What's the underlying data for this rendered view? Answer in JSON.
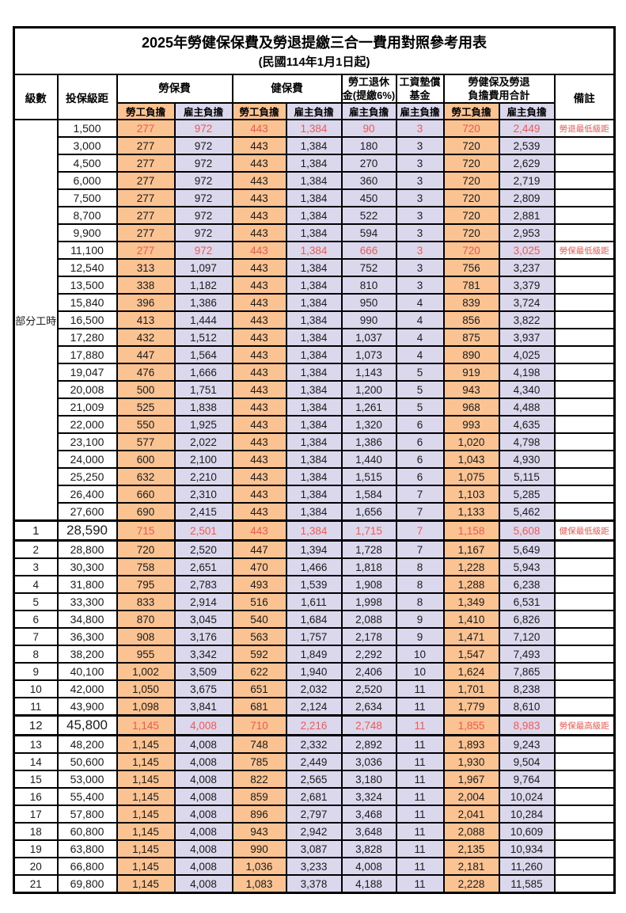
{
  "title": "2025年勞健保保費及勞退提繳三合一費用對照參考用表",
  "subtitle": "(民國114年1月1日起)",
  "header": {
    "level": "級數",
    "bracket": "投保級距",
    "labor_fee": "勞保費",
    "health_fee": "健保費",
    "pension_line1": "勞工退休",
    "pension_line2": "金(提繳6%)",
    "wage_fund_line1": "工資墊償",
    "wage_fund_line2": "基金",
    "total_line1": "勞健保及勞退",
    "total_line2": "負擔費用合計",
    "remark": "備註",
    "employee_burden": "勞工負擔",
    "employer_burden": "雇主負擔"
  },
  "part_time": {
    "label": "部分工時",
    "span": 23
  },
  "colors": {
    "employee_col_bg": "#fac391",
    "employer_col_bg": "#dbd8ee",
    "red_text": "#ee5a52",
    "border": "#000000"
  },
  "rows": [
    {
      "pt": true,
      "level": "",
      "bracket": "1,500",
      "values": [
        "277",
        "972",
        "443",
        "1,384",
        "90",
        "3",
        "720",
        "2,449"
      ],
      "remark": "勞退最低級距",
      "red": true,
      "big": false
    },
    {
      "pt": true,
      "level": "",
      "bracket": "3,000",
      "values": [
        "277",
        "972",
        "443",
        "1,384",
        "180",
        "3",
        "720",
        "2,539"
      ],
      "remark": "",
      "red": false,
      "big": false
    },
    {
      "pt": true,
      "level": "",
      "bracket": "4,500",
      "values": [
        "277",
        "972",
        "443",
        "1,384",
        "270",
        "3",
        "720",
        "2,629"
      ],
      "remark": "",
      "red": false,
      "big": false
    },
    {
      "pt": true,
      "level": "",
      "bracket": "6,000",
      "values": [
        "277",
        "972",
        "443",
        "1,384",
        "360",
        "3",
        "720",
        "2,719"
      ],
      "remark": "",
      "red": false,
      "big": false
    },
    {
      "pt": true,
      "level": "",
      "bracket": "7,500",
      "values": [
        "277",
        "972",
        "443",
        "1,384",
        "450",
        "3",
        "720",
        "2,809"
      ],
      "remark": "",
      "red": false,
      "big": false
    },
    {
      "pt": true,
      "level": "",
      "bracket": "8,700",
      "values": [
        "277",
        "972",
        "443",
        "1,384",
        "522",
        "3",
        "720",
        "2,881"
      ],
      "remark": "",
      "red": false,
      "big": false
    },
    {
      "pt": true,
      "level": "",
      "bracket": "9,900",
      "values": [
        "277",
        "972",
        "443",
        "1,384",
        "594",
        "3",
        "720",
        "2,953"
      ],
      "remark": "",
      "red": false,
      "big": false
    },
    {
      "pt": true,
      "level": "",
      "bracket": "11,100",
      "values": [
        "277",
        "972",
        "443",
        "1,384",
        "666",
        "3",
        "720",
        "3,025"
      ],
      "remark": "勞保最低級距",
      "red": true,
      "big": false
    },
    {
      "pt": true,
      "level": "",
      "bracket": "12,540",
      "values": [
        "313",
        "1,097",
        "443",
        "1,384",
        "752",
        "3",
        "756",
        "3,237"
      ],
      "remark": "",
      "red": false,
      "big": false
    },
    {
      "pt": true,
      "level": "",
      "bracket": "13,500",
      "values": [
        "338",
        "1,182",
        "443",
        "1,384",
        "810",
        "3",
        "781",
        "3,379"
      ],
      "remark": "",
      "red": false,
      "big": false
    },
    {
      "pt": true,
      "level": "",
      "bracket": "15,840",
      "values": [
        "396",
        "1,386",
        "443",
        "1,384",
        "950",
        "4",
        "839",
        "3,724"
      ],
      "remark": "",
      "red": false,
      "big": false
    },
    {
      "pt": true,
      "level": "",
      "bracket": "16,500",
      "values": [
        "413",
        "1,444",
        "443",
        "1,384",
        "990",
        "4",
        "856",
        "3,822"
      ],
      "remark": "",
      "red": false,
      "big": false
    },
    {
      "pt": true,
      "level": "",
      "bracket": "17,280",
      "values": [
        "432",
        "1,512",
        "443",
        "1,384",
        "1,037",
        "4",
        "875",
        "3,937"
      ],
      "remark": "",
      "red": false,
      "big": false
    },
    {
      "pt": true,
      "level": "",
      "bracket": "17,880",
      "values": [
        "447",
        "1,564",
        "443",
        "1,384",
        "1,073",
        "4",
        "890",
        "4,025"
      ],
      "remark": "",
      "red": false,
      "big": false
    },
    {
      "pt": true,
      "level": "",
      "bracket": "19,047",
      "values": [
        "476",
        "1,666",
        "443",
        "1,384",
        "1,143",
        "5",
        "919",
        "4,198"
      ],
      "remark": "",
      "red": false,
      "big": false
    },
    {
      "pt": true,
      "level": "",
      "bracket": "20,008",
      "values": [
        "500",
        "1,751",
        "443",
        "1,384",
        "1,200",
        "5",
        "943",
        "4,340"
      ],
      "remark": "",
      "red": false,
      "big": false
    },
    {
      "pt": true,
      "level": "",
      "bracket": "21,009",
      "values": [
        "525",
        "1,838",
        "443",
        "1,384",
        "1,261",
        "5",
        "968",
        "4,488"
      ],
      "remark": "",
      "red": false,
      "big": false
    },
    {
      "pt": true,
      "level": "",
      "bracket": "22,000",
      "values": [
        "550",
        "1,925",
        "443",
        "1,384",
        "1,320",
        "6",
        "993",
        "4,635"
      ],
      "remark": "",
      "red": false,
      "big": false
    },
    {
      "pt": true,
      "level": "",
      "bracket": "23,100",
      "values": [
        "577",
        "2,022",
        "443",
        "1,384",
        "1,386",
        "6",
        "1,020",
        "4,798"
      ],
      "remark": "",
      "red": false,
      "big": false
    },
    {
      "pt": true,
      "level": "",
      "bracket": "24,000",
      "values": [
        "600",
        "2,100",
        "443",
        "1,384",
        "1,440",
        "6",
        "1,043",
        "4,930"
      ],
      "remark": "",
      "red": false,
      "big": false
    },
    {
      "pt": true,
      "level": "",
      "bracket": "25,250",
      "values": [
        "632",
        "2,210",
        "443",
        "1,384",
        "1,515",
        "6",
        "1,075",
        "5,115"
      ],
      "remark": "",
      "red": false,
      "big": false
    },
    {
      "pt": true,
      "level": "",
      "bracket": "26,400",
      "values": [
        "660",
        "2,310",
        "443",
        "1,384",
        "1,584",
        "7",
        "1,103",
        "5,285"
      ],
      "remark": "",
      "red": false,
      "big": false
    },
    {
      "pt": true,
      "level": "",
      "bracket": "27,600",
      "values": [
        "690",
        "2,415",
        "443",
        "1,384",
        "1,656",
        "7",
        "1,133",
        "5,462"
      ],
      "remark": "",
      "red": false,
      "big": false
    },
    {
      "pt": false,
      "level": "1",
      "bracket": "28,590",
      "values": [
        "715",
        "2,501",
        "443",
        "1,384",
        "1,715",
        "7",
        "1,158",
        "5,608"
      ],
      "remark": "健保最低級距",
      "red": true,
      "big": true
    },
    {
      "pt": false,
      "level": "2",
      "bracket": "28,800",
      "values": [
        "720",
        "2,520",
        "447",
        "1,394",
        "1,728",
        "7",
        "1,167",
        "5,649"
      ],
      "remark": "",
      "red": false,
      "big": false
    },
    {
      "pt": false,
      "level": "3",
      "bracket": "30,300",
      "values": [
        "758",
        "2,651",
        "470",
        "1,466",
        "1,818",
        "8",
        "1,228",
        "5,943"
      ],
      "remark": "",
      "red": false,
      "big": false
    },
    {
      "pt": false,
      "level": "4",
      "bracket": "31,800",
      "values": [
        "795",
        "2,783",
        "493",
        "1,539",
        "1,908",
        "8",
        "1,288",
        "6,238"
      ],
      "remark": "",
      "red": false,
      "big": false
    },
    {
      "pt": false,
      "level": "5",
      "bracket": "33,300",
      "values": [
        "833",
        "2,914",
        "516",
        "1,611",
        "1,998",
        "8",
        "1,349",
        "6,531"
      ],
      "remark": "",
      "red": false,
      "big": false
    },
    {
      "pt": false,
      "level": "6",
      "bracket": "34,800",
      "values": [
        "870",
        "3,045",
        "540",
        "1,684",
        "2,088",
        "9",
        "1,410",
        "6,826"
      ],
      "remark": "",
      "red": false,
      "big": false
    },
    {
      "pt": false,
      "level": "7",
      "bracket": "36,300",
      "values": [
        "908",
        "3,176",
        "563",
        "1,757",
        "2,178",
        "9",
        "1,471",
        "7,120"
      ],
      "remark": "",
      "red": false,
      "big": false
    },
    {
      "pt": false,
      "level": "8",
      "bracket": "38,200",
      "values": [
        "955",
        "3,342",
        "592",
        "1,849",
        "2,292",
        "10",
        "1,547",
        "7,493"
      ],
      "remark": "",
      "red": false,
      "big": false
    },
    {
      "pt": false,
      "level": "9",
      "bracket": "40,100",
      "values": [
        "1,002",
        "3,509",
        "622",
        "1,940",
        "2,406",
        "10",
        "1,624",
        "7,865"
      ],
      "remark": "",
      "red": false,
      "big": false
    },
    {
      "pt": false,
      "level": "10",
      "bracket": "42,000",
      "values": [
        "1,050",
        "3,675",
        "651",
        "2,032",
        "2,520",
        "11",
        "1,701",
        "8,238"
      ],
      "remark": "",
      "red": false,
      "big": false
    },
    {
      "pt": false,
      "level": "11",
      "bracket": "43,900",
      "values": [
        "1,098",
        "3,841",
        "681",
        "2,124",
        "2,634",
        "11",
        "1,779",
        "8,610"
      ],
      "remark": "",
      "red": false,
      "big": false
    },
    {
      "pt": false,
      "level": "12",
      "bracket": "45,800",
      "values": [
        "1,145",
        "4,008",
        "710",
        "2,216",
        "2,748",
        "11",
        "1,855",
        "8,983"
      ],
      "remark": "勞保最高級距",
      "red": true,
      "big": true
    },
    {
      "pt": false,
      "level": "13",
      "bracket": "48,200",
      "values": [
        "1,145",
        "4,008",
        "748",
        "2,332",
        "2,892",
        "11",
        "1,893",
        "9,243"
      ],
      "remark": "",
      "red": false,
      "big": false
    },
    {
      "pt": false,
      "level": "14",
      "bracket": "50,600",
      "values": [
        "1,145",
        "4,008",
        "785",
        "2,449",
        "3,036",
        "11",
        "1,930",
        "9,504"
      ],
      "remark": "",
      "red": false,
      "big": false
    },
    {
      "pt": false,
      "level": "15",
      "bracket": "53,000",
      "values": [
        "1,145",
        "4,008",
        "822",
        "2,565",
        "3,180",
        "11",
        "1,967",
        "9,764"
      ],
      "remark": "",
      "red": false,
      "big": false
    },
    {
      "pt": false,
      "level": "16",
      "bracket": "55,400",
      "values": [
        "1,145",
        "4,008",
        "859",
        "2,681",
        "3,324",
        "11",
        "2,004",
        "10,024"
      ],
      "remark": "",
      "red": false,
      "big": false
    },
    {
      "pt": false,
      "level": "17",
      "bracket": "57,800",
      "values": [
        "1,145",
        "4,008",
        "896",
        "2,797",
        "3,468",
        "11",
        "2,041",
        "10,284"
      ],
      "remark": "",
      "red": false,
      "big": false
    },
    {
      "pt": false,
      "level": "18",
      "bracket": "60,800",
      "values": [
        "1,145",
        "4,008",
        "943",
        "2,942",
        "3,648",
        "11",
        "2,088",
        "10,609"
      ],
      "remark": "",
      "red": false,
      "big": false
    },
    {
      "pt": false,
      "level": "19",
      "bracket": "63,800",
      "values": [
        "1,145",
        "4,008",
        "990",
        "3,087",
        "3,828",
        "11",
        "2,135",
        "10,934"
      ],
      "remark": "",
      "red": false,
      "big": false
    },
    {
      "pt": false,
      "level": "20",
      "bracket": "66,800",
      "values": [
        "1,145",
        "4,008",
        "1,036",
        "3,233",
        "4,008",
        "11",
        "2,181",
        "11,260"
      ],
      "remark": "",
      "red": false,
      "big": false
    },
    {
      "pt": false,
      "level": "21",
      "bracket": "69,800",
      "values": [
        "1,145",
        "4,008",
        "1,083",
        "3,378",
        "4,188",
        "11",
        "2,228",
        "11,585"
      ],
      "remark": "",
      "red": false,
      "big": false
    }
  ]
}
